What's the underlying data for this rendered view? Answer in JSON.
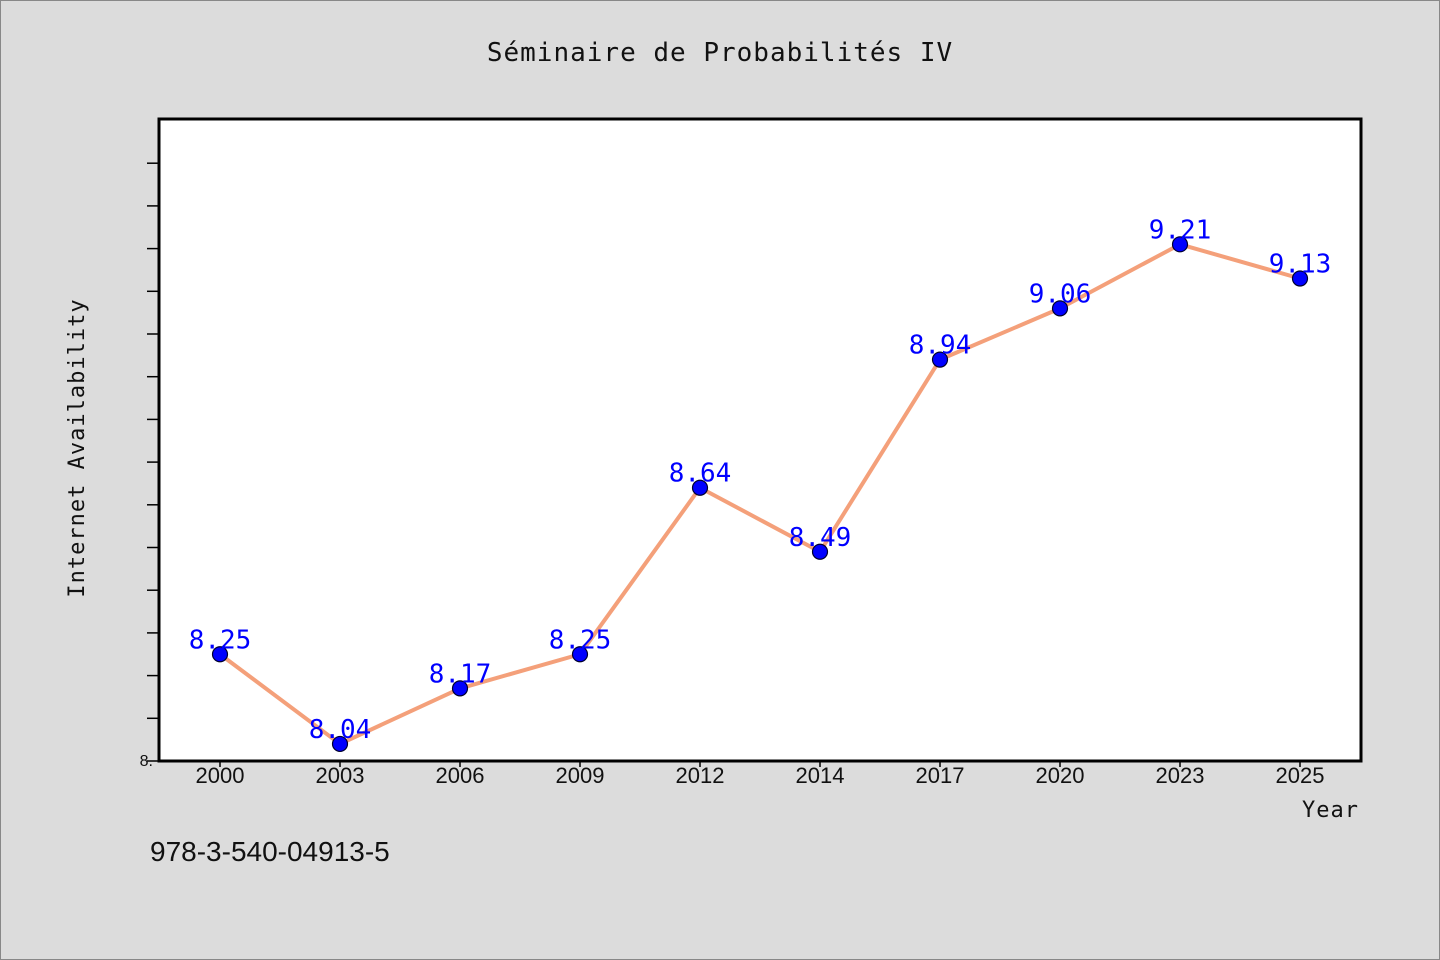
{
  "footer_text": "978-3-540-04913-5",
  "chart_data": {
    "type": "line",
    "title": "Séminaire de Probabilités IV",
    "xlabel": "Year",
    "ylabel": "Internet Availability",
    "categories": [
      "2000",
      "2003",
      "2006",
      "2009",
      "2012",
      "2014",
      "2017",
      "2020",
      "2023",
      "2025"
    ],
    "series": [
      {
        "values": [
          8.25,
          8.04,
          8.17,
          8.25,
          8.64,
          8.49,
          8.94,
          9.06,
          9.21,
          9.13
        ],
        "labels": [
          "8.25",
          "8.04",
          "8.17",
          "8.25",
          "8.64",
          "8.49",
          "8.94",
          "9.06",
          "9.21",
          "9.13"
        ],
        "line_color": "#f4a07a",
        "marker_color": "#0000ff",
        "label_color": "#0000ff"
      }
    ],
    "ylim": [
      8.0,
      9.5
    ],
    "y_tick_label_shown": "8.",
    "grid": false,
    "legend": "none"
  }
}
